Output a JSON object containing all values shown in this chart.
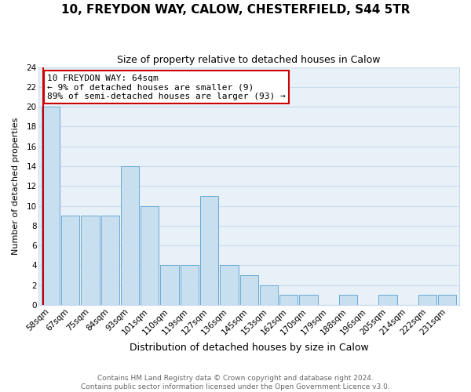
{
  "title": "10, FREYDON WAY, CALOW, CHESTERFIELD, S44 5TR",
  "subtitle": "Size of property relative to detached houses in Calow",
  "xlabel": "Distribution of detached houses by size in Calow",
  "ylabel": "Number of detached properties",
  "bar_labels": [
    "58sqm",
    "67sqm",
    "75sqm",
    "84sqm",
    "93sqm",
    "101sqm",
    "110sqm",
    "119sqm",
    "127sqm",
    "136sqm",
    "145sqm",
    "153sqm",
    "162sqm",
    "170sqm",
    "179sqm",
    "188sqm",
    "196sqm",
    "205sqm",
    "214sqm",
    "222sqm",
    "231sqm"
  ],
  "bar_heights": [
    20,
    9,
    9,
    9,
    14,
    10,
    4,
    4,
    11,
    4,
    3,
    2,
    1,
    1,
    0,
    1,
    0,
    1,
    0,
    1,
    1
  ],
  "bar_color": "#c8dff0",
  "bar_edge_color": "#6aaad4",
  "red_line_x": -0.38,
  "annotation_line1": "10 FREYDON WAY: 64sqm",
  "annotation_line2": "← 9% of detached houses are smaller (9)",
  "annotation_line3": "89% of semi-detached houses are larger (93) →",
  "annotation_box_color": "#ffffff",
  "annotation_box_edge_color": "#cc0000",
  "red_line_color": "#cc0000",
  "ylim": [
    0,
    24
  ],
  "yticks": [
    0,
    2,
    4,
    6,
    8,
    10,
    12,
    14,
    16,
    18,
    20,
    22,
    24
  ],
  "grid_color": "#c8daf0",
  "plot_bg_color": "#e8f0f8",
  "footer_text": "Contains HM Land Registry data © Crown copyright and database right 2024.\nContains public sector information licensed under the Open Government Licence v3.0.",
  "title_fontsize": 11,
  "subtitle_fontsize": 9,
  "xlabel_fontsize": 9,
  "ylabel_fontsize": 8,
  "tick_fontsize": 7.5,
  "annotation_fontsize": 8,
  "footer_fontsize": 6.5
}
